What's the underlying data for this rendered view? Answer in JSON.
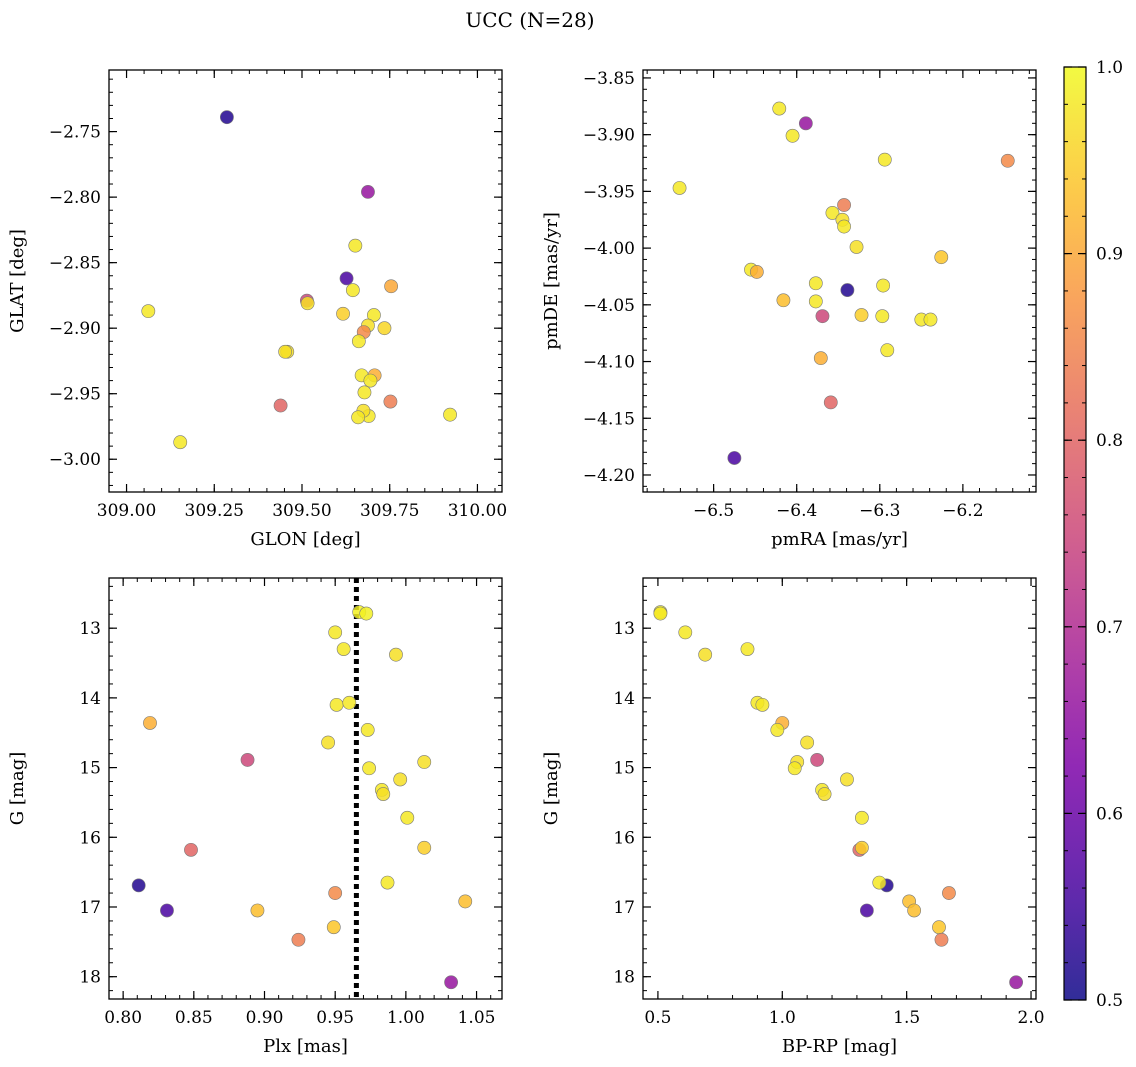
{
  "figure": {
    "title": "UCC (N=28)"
  },
  "colorbar": {
    "colormap": "plasma",
    "min": 0.5,
    "max": 1.0,
    "ticks": [
      "0.5",
      "0.6",
      "0.7",
      "0.8",
      "0.9",
      "1.0"
    ],
    "tick_values": [
      0.5,
      0.6,
      0.7,
      0.8,
      0.9,
      1.0
    ]
  },
  "chart_data": [
    {
      "type": "scatter",
      "id": "glon-glat",
      "xlabel": "GLON [deg]",
      "ylabel": "GLAT [deg]",
      "xlim": [
        308.95,
        310.07
      ],
      "ylim": [
        -3.025,
        -2.703
      ],
      "y_inverted": false,
      "xticks": [
        309.0,
        309.25,
        309.5,
        309.75,
        310.0
      ],
      "xtick_labels": [
        "309.00",
        "309.25",
        "309.50",
        "309.75",
        "310.00"
      ],
      "yticks": [
        -2.75,
        -2.8,
        -2.85,
        -2.9,
        -2.95,
        -3.0
      ],
      "ytick_labels": [
        "−2.75",
        "−2.80",
        "−2.85",
        "−2.90",
        "−2.95",
        "−3.00"
      ],
      "x": [
        309.286,
        309.688,
        309.652,
        309.627,
        309.645,
        309.754,
        309.514,
        309.516,
        309.062,
        309.617,
        309.705,
        309.735,
        309.688,
        309.676,
        309.662,
        309.458,
        309.452,
        309.67,
        309.707,
        309.695,
        309.678,
        309.752,
        309.439,
        309.69,
        309.675,
        309.66,
        309.922,
        309.153
      ],
      "y": [
        -2.739,
        -2.796,
        -2.837,
        -2.862,
        -2.871,
        -2.868,
        -2.879,
        -2.881,
        -2.887,
        -2.889,
        -2.89,
        -2.9,
        -2.898,
        -2.903,
        -2.91,
        -2.918,
        -2.918,
        -2.936,
        -2.936,
        -2.94,
        -2.949,
        -2.956,
        -2.959,
        -2.967,
        -2.963,
        -2.968,
        -2.966,
        -2.987
      ],
      "c": [
        0.52,
        0.66,
        0.98,
        0.56,
        0.98,
        0.9,
        0.75,
        0.97,
        0.98,
        0.95,
        0.98,
        0.96,
        0.97,
        0.86,
        0.98,
        0.97,
        0.97,
        0.98,
        0.91,
        0.98,
        0.98,
        0.84,
        0.8,
        0.98,
        0.97,
        0.98,
        0.98,
        0.98
      ]
    },
    {
      "type": "scatter",
      "id": "pmra-pmde",
      "xlabel": "pmRA [mas/yr]",
      "ylabel": "pmDE [mas/yr]",
      "xlim": [
        -6.585,
        -6.112
      ],
      "ylim": [
        -4.215,
        -3.843
      ],
      "y_inverted": false,
      "xticks": [
        -6.5,
        -6.4,
        -6.3,
        -6.2
      ],
      "xtick_labels": [
        "−6.5",
        "−6.4",
        "−6.3",
        "−6.2"
      ],
      "yticks": [
        -3.85,
        -3.9,
        -3.95,
        -4.0,
        -4.05,
        -4.1,
        -4.15,
        -4.2
      ],
      "ytick_labels": [
        "−3.85",
        "−3.90",
        "−3.95",
        "−4.00",
        "−4.05",
        "−4.10",
        "−4.15",
        "−4.20"
      ],
      "x": [
        -6.421,
        -6.389,
        -6.405,
        -6.294,
        -6.146,
        -6.541,
        -6.343,
        -6.357,
        -6.345,
        -6.343,
        -6.328,
        -6.226,
        -6.455,
        -6.448,
        -6.416,
        -6.377,
        -6.377,
        -6.339,
        -6.296,
        -6.369,
        -6.322,
        -6.297,
        -6.25,
        -6.239,
        -6.291,
        -6.371,
        -6.359,
        -6.475
      ],
      "y": [
        -3.877,
        -3.89,
        -3.901,
        -3.922,
        -3.923,
        -3.947,
        -3.962,
        -3.969,
        -3.975,
        -3.981,
        -3.999,
        -4.008,
        -4.019,
        -4.021,
        -4.046,
        -4.031,
        -4.047,
        -4.037,
        -4.033,
        -4.06,
        -4.059,
        -4.06,
        -4.063,
        -4.063,
        -4.09,
        -4.097,
        -4.136,
        -4.185
      ],
      "c": [
        0.98,
        0.66,
        0.98,
        0.98,
        0.86,
        0.98,
        0.84,
        0.98,
        0.97,
        0.98,
        0.97,
        0.94,
        0.98,
        0.91,
        0.93,
        0.98,
        0.98,
        0.52,
        0.98,
        0.75,
        0.95,
        0.98,
        0.98,
        0.98,
        0.98,
        0.91,
        0.8,
        0.56
      ]
    },
    {
      "type": "scatter",
      "id": "plx-g",
      "xlabel": "Plx [mas]",
      "ylabel": "G [mag]",
      "xlim": [
        0.79,
        1.068
      ],
      "ylim": [
        12.28,
        18.32
      ],
      "y_inverted": true,
      "xticks": [
        0.8,
        0.85,
        0.9,
        0.95,
        1.0,
        1.05
      ],
      "xtick_labels": [
        "0.80",
        "0.85",
        "0.90",
        "0.95",
        "1.00",
        "1.05"
      ],
      "yticks": [
        13,
        14,
        15,
        16,
        17,
        18
      ],
      "ytick_labels": [
        "13",
        "14",
        "15",
        "16",
        "17",
        "18"
      ],
      "reference_line": {
        "axis": "x",
        "value": 0.965,
        "style": "dotted"
      },
      "x": [
        0.967,
        0.972,
        0.95,
        0.956,
        0.993,
        0.951,
        0.96,
        0.819,
        0.973,
        0.945,
        0.888,
        1.013,
        0.974,
        0.996,
        0.983,
        0.984,
        1.001,
        0.848,
        1.013,
        0.811,
        0.987,
        0.95,
        1.042,
        0.831,
        0.895,
        0.949,
        0.924,
        1.032
      ],
      "y": [
        12.77,
        12.79,
        13.06,
        13.3,
        13.38,
        14.1,
        14.07,
        14.36,
        14.46,
        14.64,
        14.89,
        14.92,
        15.01,
        15.17,
        15.32,
        15.38,
        15.72,
        16.18,
        16.15,
        16.69,
        16.65,
        16.8,
        16.92,
        17.05,
        17.05,
        17.29,
        17.47,
        18.08
      ],
      "c": [
        0.99,
        0.99,
        0.98,
        0.98,
        0.97,
        0.98,
        0.98,
        0.91,
        0.98,
        0.97,
        0.75,
        0.97,
        0.98,
        0.97,
        0.98,
        0.97,
        0.98,
        0.8,
        0.95,
        0.52,
        0.98,
        0.86,
        0.93,
        0.56,
        0.93,
        0.94,
        0.84,
        0.66
      ]
    },
    {
      "type": "scatter",
      "id": "bprp-g",
      "xlabel": "BP-RP [mag]",
      "ylabel": "G [mag]",
      "xlim": [
        0.44,
        2.02
      ],
      "ylim": [
        12.28,
        18.32
      ],
      "y_inverted": true,
      "xticks": [
        0.5,
        1.0,
        1.5,
        2.0
      ],
      "xtick_labels": [
        "0.5",
        "1.0",
        "1.5",
        "2.0"
      ],
      "yticks": [
        13,
        14,
        15,
        16,
        17,
        18
      ],
      "ytick_labels": [
        "13",
        "14",
        "15",
        "16",
        "17",
        "18"
      ],
      "x": [
        0.51,
        0.51,
        0.61,
        0.69,
        0.86,
        0.9,
        0.92,
        1.0,
        0.98,
        1.1,
        1.14,
        1.06,
        1.05,
        1.26,
        1.16,
        1.17,
        1.32,
        1.31,
        1.32,
        1.42,
        1.39,
        1.67,
        1.51,
        1.34,
        1.53,
        1.63,
        1.64,
        1.94
      ],
      "y": [
        12.77,
        12.79,
        13.06,
        13.38,
        13.3,
        14.07,
        14.1,
        14.36,
        14.46,
        14.64,
        14.89,
        14.92,
        15.01,
        15.17,
        15.32,
        15.38,
        15.72,
        16.18,
        16.15,
        16.69,
        16.65,
        16.8,
        16.92,
        17.05,
        17.05,
        17.29,
        17.47,
        18.08
      ],
      "c": [
        0.99,
        0.98,
        0.98,
        0.97,
        0.98,
        0.98,
        0.98,
        0.91,
        0.98,
        0.97,
        0.75,
        0.97,
        0.98,
        0.97,
        0.98,
        0.97,
        0.98,
        0.8,
        0.95,
        0.52,
        0.98,
        0.86,
        0.93,
        0.56,
        0.93,
        0.94,
        0.84,
        0.66
      ]
    }
  ]
}
